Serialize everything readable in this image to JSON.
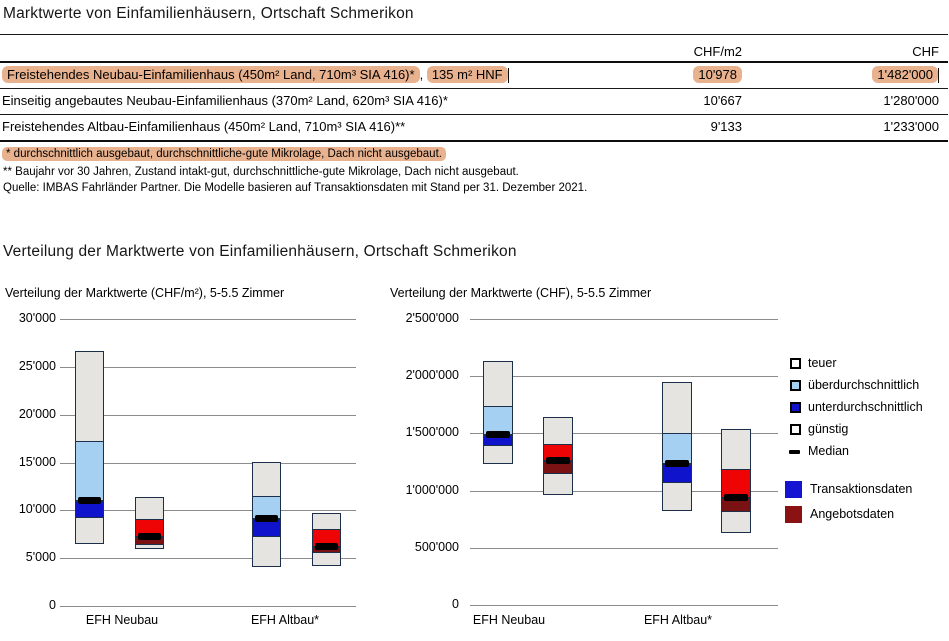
{
  "report": {
    "title": "Marktwerte von Einfamilienhäusern, Ortschaft Schmerikon",
    "section2_title": "Verteilung der Marktwerte von Einfamilienhäusern, Ortschaft Schmerikon"
  },
  "table": {
    "col_headers": [
      "CHF/m2",
      "CHF"
    ],
    "separator": ",",
    "rows": [
      {
        "label": "Freistehendes Neubau-Einfamilienhaus (450m² Land, 710m³ SIA 416)*",
        "label_suffix": "135 m² HNF",
        "chf_m2": "10'978",
        "chf": "1'482'000",
        "highlighted": true
      },
      {
        "label": "Einseitig angebautes Neubau-Einfamilienhaus (370m² Land, 620m³ SIA 416)*",
        "chf_m2": "10'667",
        "chf": "1'280'000",
        "highlighted": false
      },
      {
        "label": "Freistehendes Altbau-Einfamilienhaus (450m² Land, 710m³ SIA 416)**",
        "chf_m2": "9'133",
        "chf": "1'233'000",
        "highlighted": false
      }
    ],
    "footnotes": [
      {
        "text": "* durchschnittlich ausgebaut, durchschnittliche-gute Mikrolage, Dach nicht ausgebaut.",
        "highlighted": true
      },
      {
        "text": "** Baujahr vor 30 Jahren, Zustand intakt-gut, durchschnittliche-gute Mikrolage, Dach nicht ausgebaut.",
        "highlighted": false
      },
      {
        "text": "Quelle: IMBAS Fahrländer Partner. Die Modelle basieren auf Transaktionsdaten mit Stand per 31. Dezember 2021.",
        "highlighted": false
      }
    ]
  },
  "chart_data": [
    {
      "type": "boxplot",
      "title": "Verteilung der Marktwerte (CHF/m²), 5-5.5 Zimmer",
      "ylabel": "CHF/m²",
      "ylim": [
        0,
        30000
      ],
      "ytick_step": 5000,
      "ytick_labels": [
        "0",
        "5'000",
        "10'000",
        "15'000",
        "20'000",
        "25'000",
        "30'000"
      ],
      "categories": [
        "EFH Neubau",
        "EFH Altbau*"
      ],
      "grid": true,
      "series": [
        {
          "name": "Transaktionsdaten",
          "boxes": [
            {
              "min": 6450,
              "q1": 9150,
              "median": 10978,
              "q3": 17200,
              "max": 26700
            },
            {
              "min": 4050,
              "q1": 7250,
              "median": 9133,
              "q3": 11500,
              "max": 15100
            }
          ]
        },
        {
          "name": "Angebotsdaten",
          "boxes": [
            {
              "min": 6000,
              "q1": 6400,
              "median": 7200,
              "q3": 9100,
              "max": 11400
            },
            {
              "min": 4200,
              "q1": 5500,
              "median": 6200,
              "q3": 8000,
              "max": 9700
            }
          ]
        }
      ]
    },
    {
      "type": "boxplot",
      "title": "Verteilung der Marktwerte (CHF), 5-5.5 Zimmer",
      "ylabel": "CHF",
      "ylim": [
        0,
        2500000
      ],
      "ytick_step": 500000,
      "ytick_labels": [
        "0",
        "500'000",
        "1'000'000",
        "1'500'000",
        "2'000'000",
        "2'500'000"
      ],
      "categories": [
        "EFH Neubau",
        "EFH Altbau*"
      ],
      "grid": true,
      "series": [
        {
          "name": "Transaktionsdaten",
          "boxes": [
            {
              "min": 1230000,
              "q1": 1390000,
              "median": 1482000,
              "q3": 1740000,
              "max": 2130000
            },
            {
              "min": 825000,
              "q1": 1070000,
              "median": 1233000,
              "q3": 1500000,
              "max": 1950000
            }
          ]
        },
        {
          "name": "Angebotsdaten",
          "boxes": [
            {
              "min": 960000,
              "q1": 1145000,
              "median": 1255000,
              "q3": 1410000,
              "max": 1640000
            },
            {
              "min": 630000,
              "q1": 815000,
              "median": 935000,
              "q3": 1185000,
              "max": 1535000
            }
          ]
        }
      ]
    }
  ],
  "legend": {
    "classes": [
      {
        "label": "teuer",
        "swatch": "neutral"
      },
      {
        "label": "überdurchschnittlich",
        "swatch": "above"
      },
      {
        "label": "unterdurchschnittlich",
        "swatch": "below"
      },
      {
        "label": "günstig",
        "swatch": "neutral"
      },
      {
        "label": "Median",
        "swatch": "median"
      }
    ],
    "series": [
      {
        "label": "Transaktionsdaten",
        "color": "#1414d2"
      },
      {
        "label": "Angebotsdaten",
        "color": "#8b1212"
      }
    ]
  },
  "colors": {
    "highlight": "#e9b28f",
    "box_grey": "#e5e4e1",
    "trans_light": "#a6d0f2",
    "trans_dark": "#0f14cc",
    "offer_light": "#ee0404",
    "offer_dark": "#7a1214",
    "box_border": "#1c2f4a",
    "gridline": "#8c8c8c",
    "median": "#000000"
  }
}
